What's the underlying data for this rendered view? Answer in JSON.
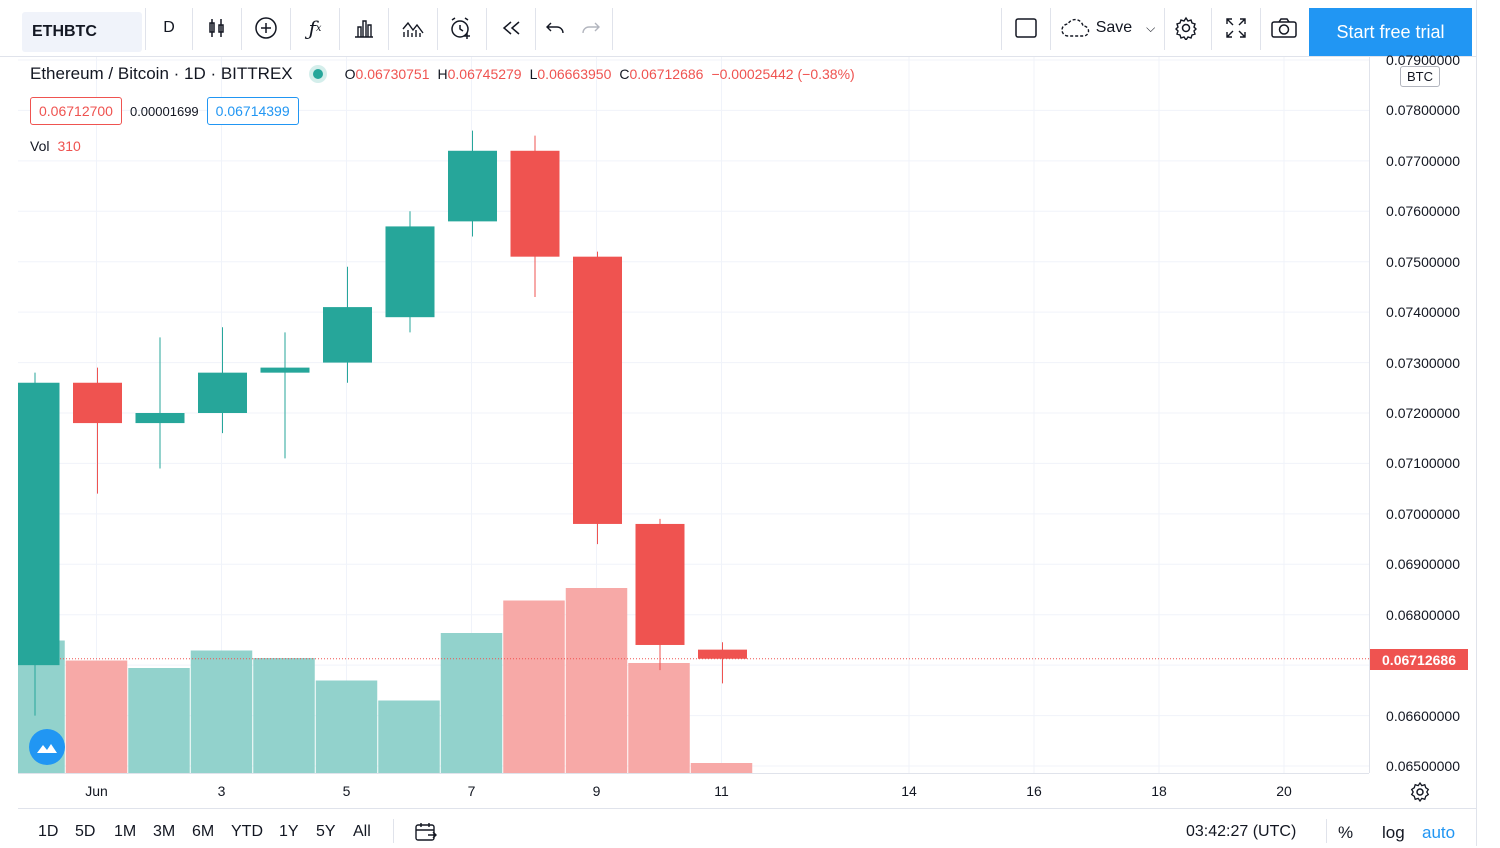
{
  "toolbar": {
    "symbol": "ETHBTC",
    "interval": "D",
    "save_label": "Save",
    "trial_label": "Start free trial"
  },
  "legend": {
    "title": "Ethereum / Bitcoin · 1D · BITTREX",
    "o_label": "O",
    "o": "0.06730751",
    "h_label": "H",
    "h": "0.06745279",
    "l_label": "L",
    "l": "0.06663950",
    "c_label": "C",
    "c": "0.06712686",
    "change": "−0.00025442 (−0.38%)",
    "bid": "0.06712700",
    "spread": "0.00001699",
    "ask": "0.06714399",
    "vol_label": "Vol",
    "vol_value": "310"
  },
  "price_axis": {
    "unit": "BTC",
    "ticks": [
      "0.07900000",
      "0.07800000",
      "0.07700000",
      "0.07600000",
      "0.07500000",
      "0.07400000",
      "0.07300000",
      "0.07200000",
      "0.07100000",
      "0.07000000",
      "0.06900000",
      "0.06800000",
      "0.06700000",
      "0.06600000",
      "0.06500000"
    ],
    "last_price": "0.06712686"
  },
  "time_axis": {
    "ticks": [
      "Jun",
      "3",
      "5",
      "7",
      "9",
      "11",
      "14",
      "16",
      "18",
      "20"
    ]
  },
  "bottom": {
    "ranges": [
      "1D",
      "5D",
      "1M",
      "3M",
      "6M",
      "YTD",
      "1Y",
      "5Y",
      "All"
    ],
    "clock": "03:42:27 (UTC)",
    "percent": "%",
    "log": "log",
    "auto": "auto"
  },
  "colors": {
    "up": "#26a69a",
    "down": "#ef5350",
    "up_vol": "#92d2cc",
    "down_vol": "#f7a9a7",
    "accent": "#2196f3"
  },
  "chart_data": {
    "type": "candlestick",
    "candles": [
      {
        "date": "May 31",
        "o": 0.067,
        "h": 0.0728,
        "l": 0.066,
        "c": 0.0726
      },
      {
        "date": "Jun 1",
        "o": 0.0726,
        "h": 0.0729,
        "l": 0.0704,
        "c": 0.0718
      },
      {
        "date": "Jun 2",
        "o": 0.0718,
        "h": 0.0735,
        "l": 0.0709,
        "c": 0.072
      },
      {
        "date": "Jun 3",
        "o": 0.072,
        "h": 0.0737,
        "l": 0.0716,
        "c": 0.0728
      },
      {
        "date": "Jun 4",
        "o": 0.0728,
        "h": 0.0736,
        "l": 0.0711,
        "c": 0.0729
      },
      {
        "date": "Jun 5",
        "o": 0.073,
        "h": 0.0749,
        "l": 0.0726,
        "c": 0.0741
      },
      {
        "date": "Jun 6",
        "o": 0.0739,
        "h": 0.076,
        "l": 0.0736,
        "c": 0.0757
      },
      {
        "date": "Jun 7",
        "o": 0.0758,
        "h": 0.0776,
        "l": 0.0755,
        "c": 0.0772
      },
      {
        "date": "Jun 8",
        "o": 0.0772,
        "h": 0.0775,
        "l": 0.0743,
        "c": 0.0751
      },
      {
        "date": "Jun 9",
        "o": 0.0751,
        "h": 0.0752,
        "l": 0.0694,
        "c": 0.0698
      },
      {
        "date": "Jun 10",
        "o": 0.0698,
        "h": 0.0699,
        "l": 0.0669,
        "c": 0.0674
      },
      {
        "date": "Jun 11",
        "o": 0.06730751,
        "h": 0.06745279,
        "l": 0.0666395,
        "c": 0.06712686
      }
    ],
    "volumes": [
      {
        "date": "May 31",
        "dir": "up",
        "v": 0.53
      },
      {
        "date": "Jun 1",
        "dir": "down",
        "v": 0.45
      },
      {
        "date": "Jun 2",
        "dir": "up",
        "v": 0.42
      },
      {
        "date": "Jun 3",
        "dir": "up",
        "v": 0.49
      },
      {
        "date": "Jun 4",
        "dir": "up",
        "v": 0.46
      },
      {
        "date": "Jun 5",
        "dir": "up",
        "v": 0.37
      },
      {
        "date": "Jun 6",
        "dir": "up",
        "v": 0.29
      },
      {
        "date": "Jun 7",
        "dir": "up",
        "v": 0.56
      },
      {
        "date": "Jun 8",
        "dir": "down",
        "v": 0.69
      },
      {
        "date": "Jun 9",
        "dir": "down",
        "v": 0.74
      },
      {
        "date": "Jun 10",
        "dir": "down",
        "v": 0.44
      },
      {
        "date": "Jun 11",
        "dir": "down",
        "v": 0.04
      }
    ],
    "ylim": [
      0.065,
      0.079
    ]
  }
}
